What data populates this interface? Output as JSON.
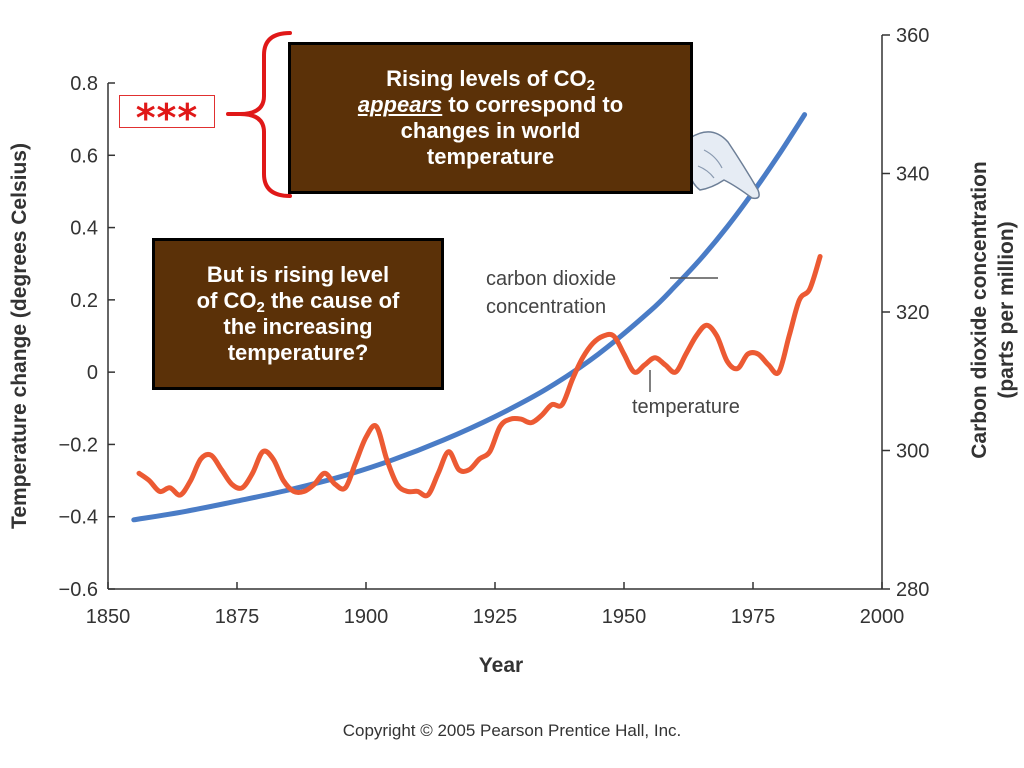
{
  "chart_data": {
    "type": "line",
    "xlabel": "Year",
    "ylabel_left": "Temperature change (degrees Celsius)",
    "ylabel_right_line1": "Carbon dioxide concentration",
    "ylabel_right_line2": "(parts per million)",
    "xlim": [
      1850,
      2000
    ],
    "ylim_left": [
      -0.6,
      0.8
    ],
    "ylim_right": [
      280,
      360
    ],
    "x_ticks": [
      "1850",
      "1875",
      "1900",
      "1925",
      "1950",
      "1975",
      "2000"
    ],
    "y_left_ticks": [
      "0.8",
      "0.6",
      "0.4",
      "0.2",
      "0",
      "−0.2",
      "−0.4",
      "−0.6"
    ],
    "y_right_ticks": [
      "360",
      "340",
      "320",
      "300",
      "280"
    ],
    "grid": false,
    "series": [
      {
        "name": "carbon dioxide concentration",
        "axis": "right",
        "color": "#4a7cc6",
        "x": [
          1855,
          1865,
          1875,
          1885,
          1895,
          1905,
          1915,
          1925,
          1935,
          1945,
          1955,
          1960,
          1965,
          1970,
          1975,
          1980,
          1985
        ],
        "y": [
          290,
          291.2,
          292.7,
          294.3,
          296.2,
          298.6,
          301.5,
          304.9,
          308.9,
          313.9,
          320.1,
          323.8,
          327.8,
          332.3,
          337.3,
          342.7,
          348.5
        ]
      },
      {
        "name": "temperature",
        "axis": "left",
        "color": "#ec5a33",
        "x": [
          1856,
          1858,
          1860,
          1862,
          1864,
          1866,
          1868,
          1870,
          1872,
          1874,
          1876,
          1878,
          1880,
          1882,
          1884,
          1886,
          1888,
          1890,
          1892,
          1894,
          1896,
          1898,
          1900,
          1902,
          1904,
          1906,
          1908,
          1910,
          1912,
          1914,
          1916,
          1918,
          1920,
          1922,
          1924,
          1926,
          1928,
          1930,
          1932,
          1934,
          1936,
          1938,
          1940,
          1942,
          1944,
          1946,
          1948,
          1950,
          1952,
          1954,
          1956,
          1958,
          1960,
          1962,
          1964,
          1966,
          1968,
          1970,
          1972,
          1974,
          1976,
          1978,
          1980,
          1982,
          1984,
          1986,
          1988
        ],
        "y": [
          -0.28,
          -0.3,
          -0.33,
          -0.32,
          -0.34,
          -0.3,
          -0.24,
          -0.23,
          -0.27,
          -0.31,
          -0.32,
          -0.28,
          -0.22,
          -0.24,
          -0.3,
          -0.33,
          -0.33,
          -0.31,
          -0.28,
          -0.31,
          -0.32,
          -0.25,
          -0.18,
          -0.15,
          -0.24,
          -0.31,
          -0.33,
          -0.33,
          -0.34,
          -0.28,
          -0.22,
          -0.27,
          -0.27,
          -0.24,
          -0.22,
          -0.15,
          -0.13,
          -0.13,
          -0.14,
          -0.12,
          -0.09,
          -0.09,
          -0.02,
          0.04,
          0.08,
          0.1,
          0.1,
          0.05,
          0.0,
          0.02,
          0.04,
          0.02,
          0.0,
          0.05,
          0.1,
          0.13,
          0.1,
          0.03,
          0.01,
          0.05,
          0.05,
          0.02,
          0.0,
          0.1,
          0.2,
          0.23,
          0.32
        ]
      }
    ]
  },
  "callouts": {
    "co2_label_line1": "carbon dioxide",
    "co2_label_line2": "concentration",
    "temperature_label": "temperature",
    "note1_line1": "Rising levels of CO",
    "note1_sub": "2",
    "note1_em": "appears",
    "note1_rest": " to correspond to",
    "note1_line3": "changes in world",
    "note1_line4": "temperature",
    "note2_line1": "But is rising level",
    "note2_of": "of CO",
    "note2_sub": "2",
    "note2_rest": " the cause of",
    "note2_line3": "the increasing",
    "note2_line4": "temperature?",
    "stars": "***"
  },
  "footer": {
    "copyright": "Copyright © 2005 Pearson Prentice Hall, Inc."
  },
  "colors": {
    "note_background": "#5b3108",
    "bracket": "#e01818",
    "stars": "#e01818"
  },
  "icons": {
    "pointer": "pointing-hand-icon"
  }
}
